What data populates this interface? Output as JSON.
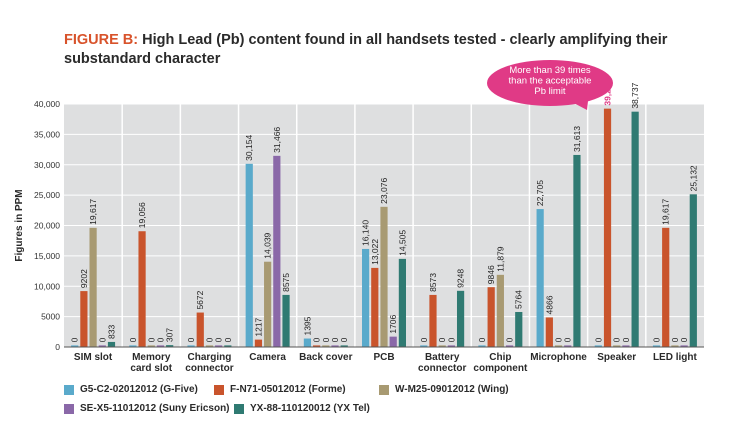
{
  "header": {
    "figure_label": "FIGURE B:",
    "title": "High Lead (Pb) content found in all handsets tested - clearly amplifying their substandard character"
  },
  "callout": {
    "text_line1": "More than 39 times",
    "text_line2": "than the acceptable",
    "text_line3": "Pb limit",
    "color": "#e03a86"
  },
  "chart_data": {
    "type": "bar",
    "ylabel": "Figures in PPM",
    "ylim": [
      0,
      40000
    ],
    "yticks": [
      0,
      5000,
      10000,
      15000,
      20000,
      25000,
      30000,
      35000,
      40000
    ],
    "ytick_labels": [
      "0",
      "5000",
      "10,000",
      "15,000",
      "20,000",
      "25,000",
      "30,000",
      "35,000",
      "40,000"
    ],
    "grid": true,
    "legend_position": "bottom",
    "categories": [
      [
        "SIM slot"
      ],
      [
        "Memory",
        "card slot"
      ],
      [
        "Charging",
        "connector"
      ],
      [
        "Camera"
      ],
      [
        "Back cover"
      ],
      [
        "PCB"
      ],
      [
        "Battery",
        "connector"
      ],
      [
        "Chip",
        "component"
      ],
      [
        "Microphone"
      ],
      [
        "Speaker"
      ],
      [
        "LED light"
      ]
    ],
    "series": [
      {
        "name": "G5-C2-02012012 (G-Five)",
        "color": "#5aaacb",
        "values": [
          0,
          0,
          0,
          30154,
          1395,
          16140,
          0,
          0,
          22705,
          0,
          0
        ],
        "labels": [
          "0",
          "0",
          "0",
          "30,154",
          "1395",
          "16,140",
          "0",
          "0",
          "22,705",
          "0",
          "0"
        ]
      },
      {
        "name": "F-N71-05012012 (Forme)",
        "color": "#c9542c",
        "values": [
          9202,
          19056,
          5672,
          1217,
          0,
          13022,
          8573,
          9846,
          4866,
          39236,
          19617
        ],
        "labels": [
          "9202",
          "19,056",
          "5672",
          "1217",
          "0",
          "13,022",
          "8573",
          "9846",
          "4866",
          "39,236",
          "19,617"
        ]
      },
      {
        "name": "W-M25-09012012 (Wing)",
        "color": "#a89a72",
        "values": [
          19617,
          0,
          0,
          14039,
          0,
          23076,
          0,
          11879,
          0,
          0,
          0
        ],
        "labels": [
          "19,617",
          "0",
          "0",
          "14,039",
          "0",
          "23,076",
          "0",
          "11,879",
          "0",
          "0",
          "0"
        ]
      },
      {
        "name": "SE-X5-11012012 (Suny Ericson)",
        "color": "#8a68a8",
        "values": [
          0,
          0,
          0,
          31466,
          0,
          1706,
          0,
          0,
          0,
          0,
          0
        ],
        "labels": [
          "0",
          "0",
          "0",
          "31,466",
          "0",
          "1706",
          "0",
          "0",
          "0",
          "0",
          "0"
        ]
      },
      {
        "name": "YX-88-110120012 (YX Tel)",
        "color": "#2f7a72",
        "values": [
          833,
          307,
          0,
          8575,
          0,
          14505,
          9248,
          5764,
          31613,
          38737,
          25132
        ],
        "labels": [
          "833",
          "307",
          "0",
          "8575",
          "0",
          "14,505",
          "9248",
          "5764",
          "31,613",
          "38,737",
          "25,132"
        ]
      }
    ],
    "highlight": {
      "series_index": 1,
      "category_index": 9,
      "color": "#e03a86"
    }
  }
}
